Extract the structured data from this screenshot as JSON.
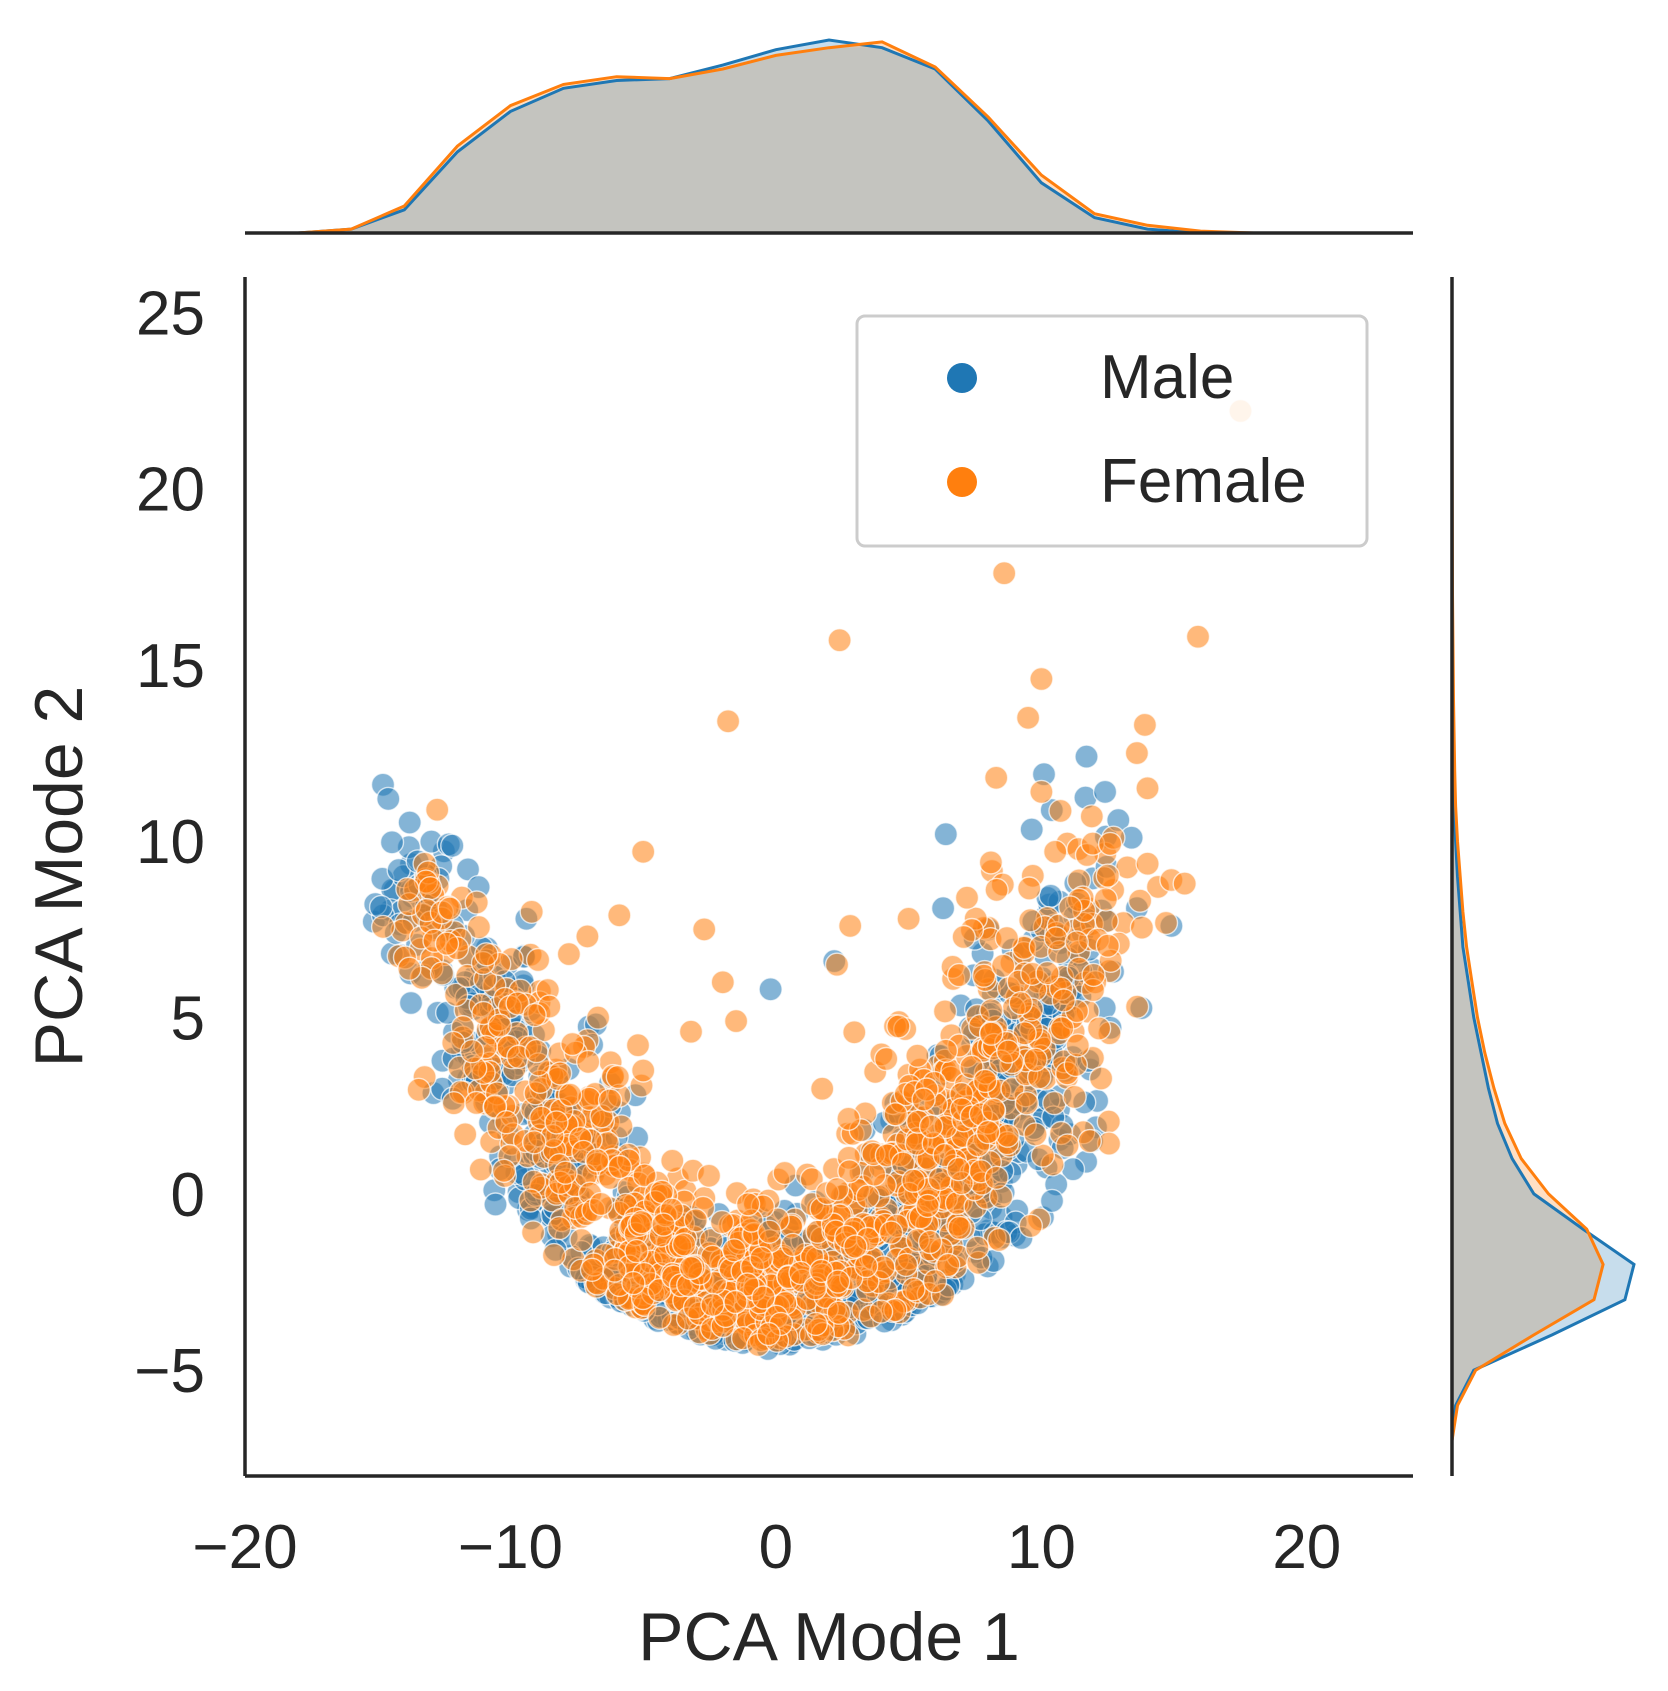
{
  "chart_data": {
    "type": "scatter",
    "variant": "jointplot with marginal KDE",
    "xlabel": "PCA Mode 1",
    "ylabel": "PCA Mode 2",
    "xlim": [
      -20,
      24
    ],
    "ylim": [
      -8,
      26
    ],
    "xticks": [
      "−20",
      "−10",
      "0",
      "10",
      "20"
    ],
    "xtick_values": [
      -20,
      -10,
      0,
      10,
      20
    ],
    "yticks": [
      "−5",
      "0",
      "5",
      "10",
      "15",
      "20",
      "25"
    ],
    "ytick_values": [
      -5,
      0,
      5,
      10,
      15,
      20,
      25
    ],
    "grid": false,
    "legend_position": "top-right",
    "marginals": "kde density curves on top (x) and right (y), filled",
    "colors": {
      "Male": "#1f77b4",
      "Female": "#ff7f0e",
      "overlap_fill": "#c4c4bf",
      "axis": "#262626"
    },
    "series": [
      {
        "name": "Male",
        "outliers": [
          [
            -14.8,
            11.6
          ],
          [
            -14.6,
            11.2
          ],
          [
            -11.6,
            9.2
          ],
          [
            -11.2,
            8.7
          ],
          [
            -9.4,
            7.8
          ],
          [
            -0.2,
            5.8
          ],
          [
            2.2,
            6.6
          ],
          [
            6.4,
            10.2
          ],
          [
            10.1,
            11.9
          ],
          [
            11.7,
            12.4
          ],
          [
            12.4,
            11.4
          ],
          [
            12.9,
            10.6
          ],
          [
            13.4,
            10.1
          ],
          [
            13.6,
            8.1
          ],
          [
            14.9,
            7.6
          ],
          [
            6.3,
            8.1
          ],
          [
            8.0,
            7.5
          ],
          [
            12.7,
            6.3
          ],
          [
            10.4,
            -0.2
          ],
          [
            8.2,
            -1.9
          ],
          [
            6.5,
            -2.6
          ],
          [
            -0.3,
            -4.4
          ]
        ],
        "cluster": [
          {
            "x": -13.5,
            "y": 8.3,
            "sx": 0.8,
            "sy": 1.1,
            "n": 45
          },
          {
            "x": -11.0,
            "y": 4.8,
            "sx": 1.0,
            "sy": 1.3,
            "n": 90
          },
          {
            "x": -8.0,
            "y": 1.2,
            "sx": 1.2,
            "sy": 1.3,
            "n": 140
          },
          {
            "x": -5.0,
            "y": -2.2,
            "sx": 1.3,
            "sy": 1.0,
            "n": 180
          },
          {
            "x": -1.0,
            "y": -3.2,
            "sx": 1.6,
            "sy": 0.8,
            "n": 230
          },
          {
            "x": 3.0,
            "y": -2.4,
            "sx": 1.6,
            "sy": 1.0,
            "n": 210
          },
          {
            "x": 6.0,
            "y": 0.0,
            "sx": 1.4,
            "sy": 1.5,
            "n": 170
          },
          {
            "x": 8.8,
            "y": 3.2,
            "sx": 1.2,
            "sy": 1.8,
            "n": 150
          },
          {
            "x": 10.8,
            "y": 6.0,
            "sx": 1.0,
            "sy": 1.8,
            "n": 70
          }
        ]
      },
      {
        "name": "Female",
        "outliers": [
          [
            17.5,
            22.2
          ],
          [
            8.6,
            17.6
          ],
          [
            2.4,
            15.7
          ],
          [
            15.9,
            15.8
          ],
          [
            10.0,
            14.6
          ],
          [
            -1.8,
            13.4
          ],
          [
            9.5,
            13.5
          ],
          [
            13.9,
            13.3
          ],
          [
            8.3,
            11.8
          ],
          [
            13.6,
            12.5
          ],
          [
            10.0,
            11.4
          ],
          [
            14.0,
            11.5
          ],
          [
            -5.0,
            9.7
          ],
          [
            8.1,
            9.4
          ],
          [
            -9.2,
            8.0
          ],
          [
            -5.9,
            7.9
          ],
          [
            2.8,
            7.6
          ],
          [
            5.0,
            7.8
          ],
          [
            7.2,
            8.4
          ],
          [
            -7.1,
            7.3
          ],
          [
            -2.7,
            7.5
          ],
          [
            -7.8,
            6.8
          ],
          [
            2.3,
            6.5
          ],
          [
            -6.7,
            5.0
          ],
          [
            -2.0,
            6.0
          ],
          [
            -1.5,
            4.9
          ],
          [
            -3.2,
            4.6
          ],
          [
            -5.0,
            3.5
          ],
          [
            14.9,
            8.9
          ],
          [
            15.4,
            8.8
          ]
        ],
        "cluster": [
          {
            "x": -13.0,
            "y": 7.8,
            "sx": 0.8,
            "sy": 1.2,
            "n": 35
          },
          {
            "x": -10.8,
            "y": 4.6,
            "sx": 1.0,
            "sy": 1.4,
            "n": 80
          },
          {
            "x": -7.8,
            "y": 1.4,
            "sx": 1.3,
            "sy": 1.4,
            "n": 130
          },
          {
            "x": -4.5,
            "y": -1.6,
            "sx": 1.4,
            "sy": 1.2,
            "n": 160
          },
          {
            "x": -0.5,
            "y": -2.6,
            "sx": 1.8,
            "sy": 1.1,
            "n": 200
          },
          {
            "x": 3.5,
            "y": -1.2,
            "sx": 1.8,
            "sy": 1.4,
            "n": 180
          },
          {
            "x": 6.2,
            "y": 1.6,
            "sx": 1.5,
            "sy": 1.8,
            "n": 150
          },
          {
            "x": 9.2,
            "y": 4.4,
            "sx": 1.4,
            "sy": 2.0,
            "n": 120
          },
          {
            "x": 12.0,
            "y": 8.2,
            "sx": 1.2,
            "sy": 1.6,
            "n": 55
          }
        ]
      }
    ],
    "marginal_x_density": {
      "x": [
        -18,
        -16,
        -14,
        -12,
        -10,
        -8,
        -6,
        -4,
        -2,
        0,
        2,
        4,
        6,
        8,
        10,
        12,
        14,
        16,
        18
      ],
      "Male": [
        0.0,
        0.02,
        0.12,
        0.42,
        0.63,
        0.75,
        0.79,
        0.8,
        0.87,
        0.95,
        1.0,
        0.96,
        0.85,
        0.58,
        0.26,
        0.08,
        0.02,
        0.0,
        0.0
      ],
      "Female": [
        0.0,
        0.02,
        0.14,
        0.45,
        0.66,
        0.77,
        0.81,
        0.8,
        0.85,
        0.92,
        0.96,
        0.99,
        0.86,
        0.6,
        0.3,
        0.1,
        0.04,
        0.01,
        0.0
      ]
    },
    "marginal_y_density": {
      "y": [
        -8,
        -7,
        -6,
        -5,
        -4,
        -3,
        -2,
        -1,
        0,
        1,
        2,
        3,
        4,
        5,
        6,
        7,
        8,
        9,
        10,
        11,
        12,
        14,
        17,
        22
      ],
      "Male": [
        0.0,
        0.0,
        0.02,
        0.12,
        0.55,
        0.95,
        1.0,
        0.72,
        0.45,
        0.33,
        0.25,
        0.2,
        0.16,
        0.12,
        0.09,
        0.06,
        0.045,
        0.03,
        0.02,
        0.01,
        0.005,
        0.0,
        0.0,
        0.0
      ],
      "Female": [
        0.0,
        0.0,
        0.03,
        0.13,
        0.45,
        0.78,
        0.83,
        0.74,
        0.53,
        0.38,
        0.29,
        0.23,
        0.18,
        0.14,
        0.11,
        0.08,
        0.06,
        0.045,
        0.03,
        0.02,
        0.015,
        0.008,
        0.003,
        0.0
      ]
    }
  }
}
